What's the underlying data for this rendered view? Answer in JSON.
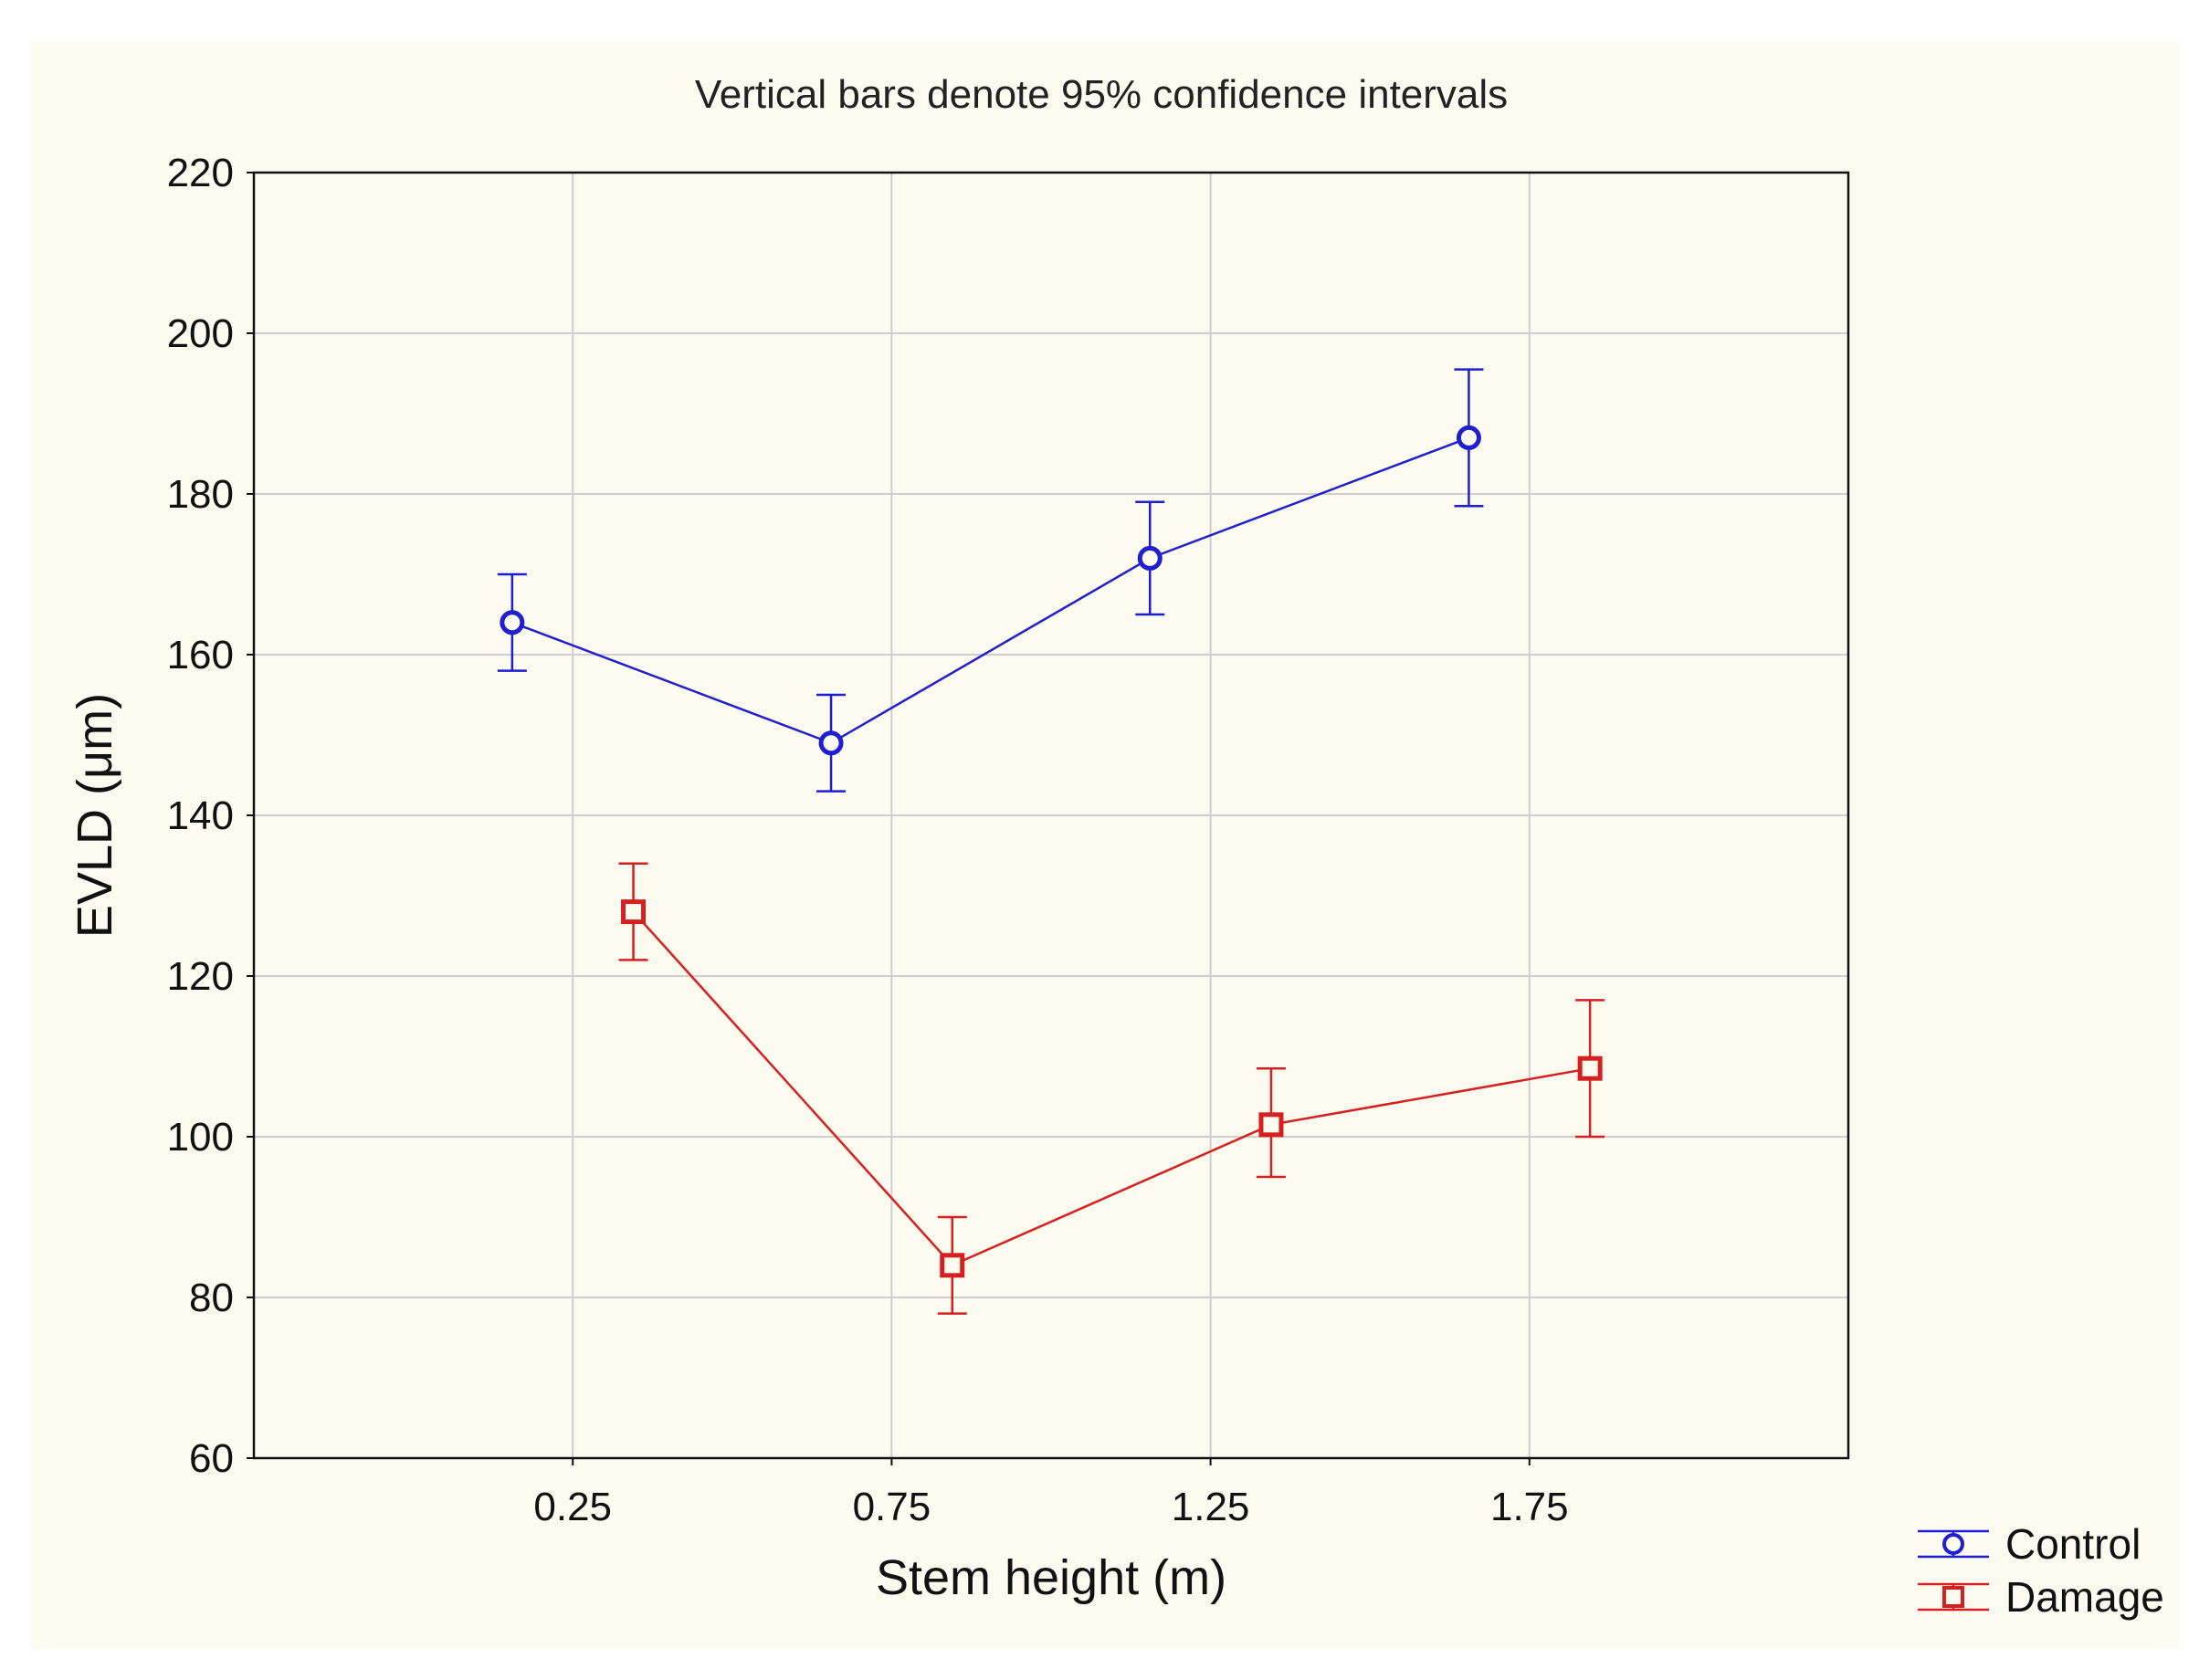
{
  "chart_data": {
    "type": "line",
    "title": "Vertical bars denote 95% confidence intervals",
    "xlabel": "Stem height (m)",
    "ylabel": "EVLD (μm)",
    "x": [
      "0.25",
      "0.75",
      "1.25",
      "1.75"
    ],
    "ylim": [
      60,
      220
    ],
    "yticks": [
      60,
      80,
      100,
      120,
      140,
      160,
      180,
      200,
      220
    ],
    "grid": true,
    "legend_position": "bottom-right",
    "series": [
      {
        "name": "Control",
        "color": "#1f1fd0",
        "marker": "circle",
        "values": [
          164,
          149,
          172,
          187
        ],
        "ci_lower": [
          158,
          143,
          165,
          178.5
        ],
        "ci_upper": [
          170,
          155,
          179,
          195.5
        ]
      },
      {
        "name": "Damage",
        "color": "#d42020",
        "marker": "square",
        "values": [
          128,
          84,
          101.5,
          108.5
        ],
        "ci_lower": [
          122,
          78,
          95,
          100
        ],
        "ci_upper": [
          134,
          90,
          108.5,
          117
        ]
      }
    ]
  }
}
